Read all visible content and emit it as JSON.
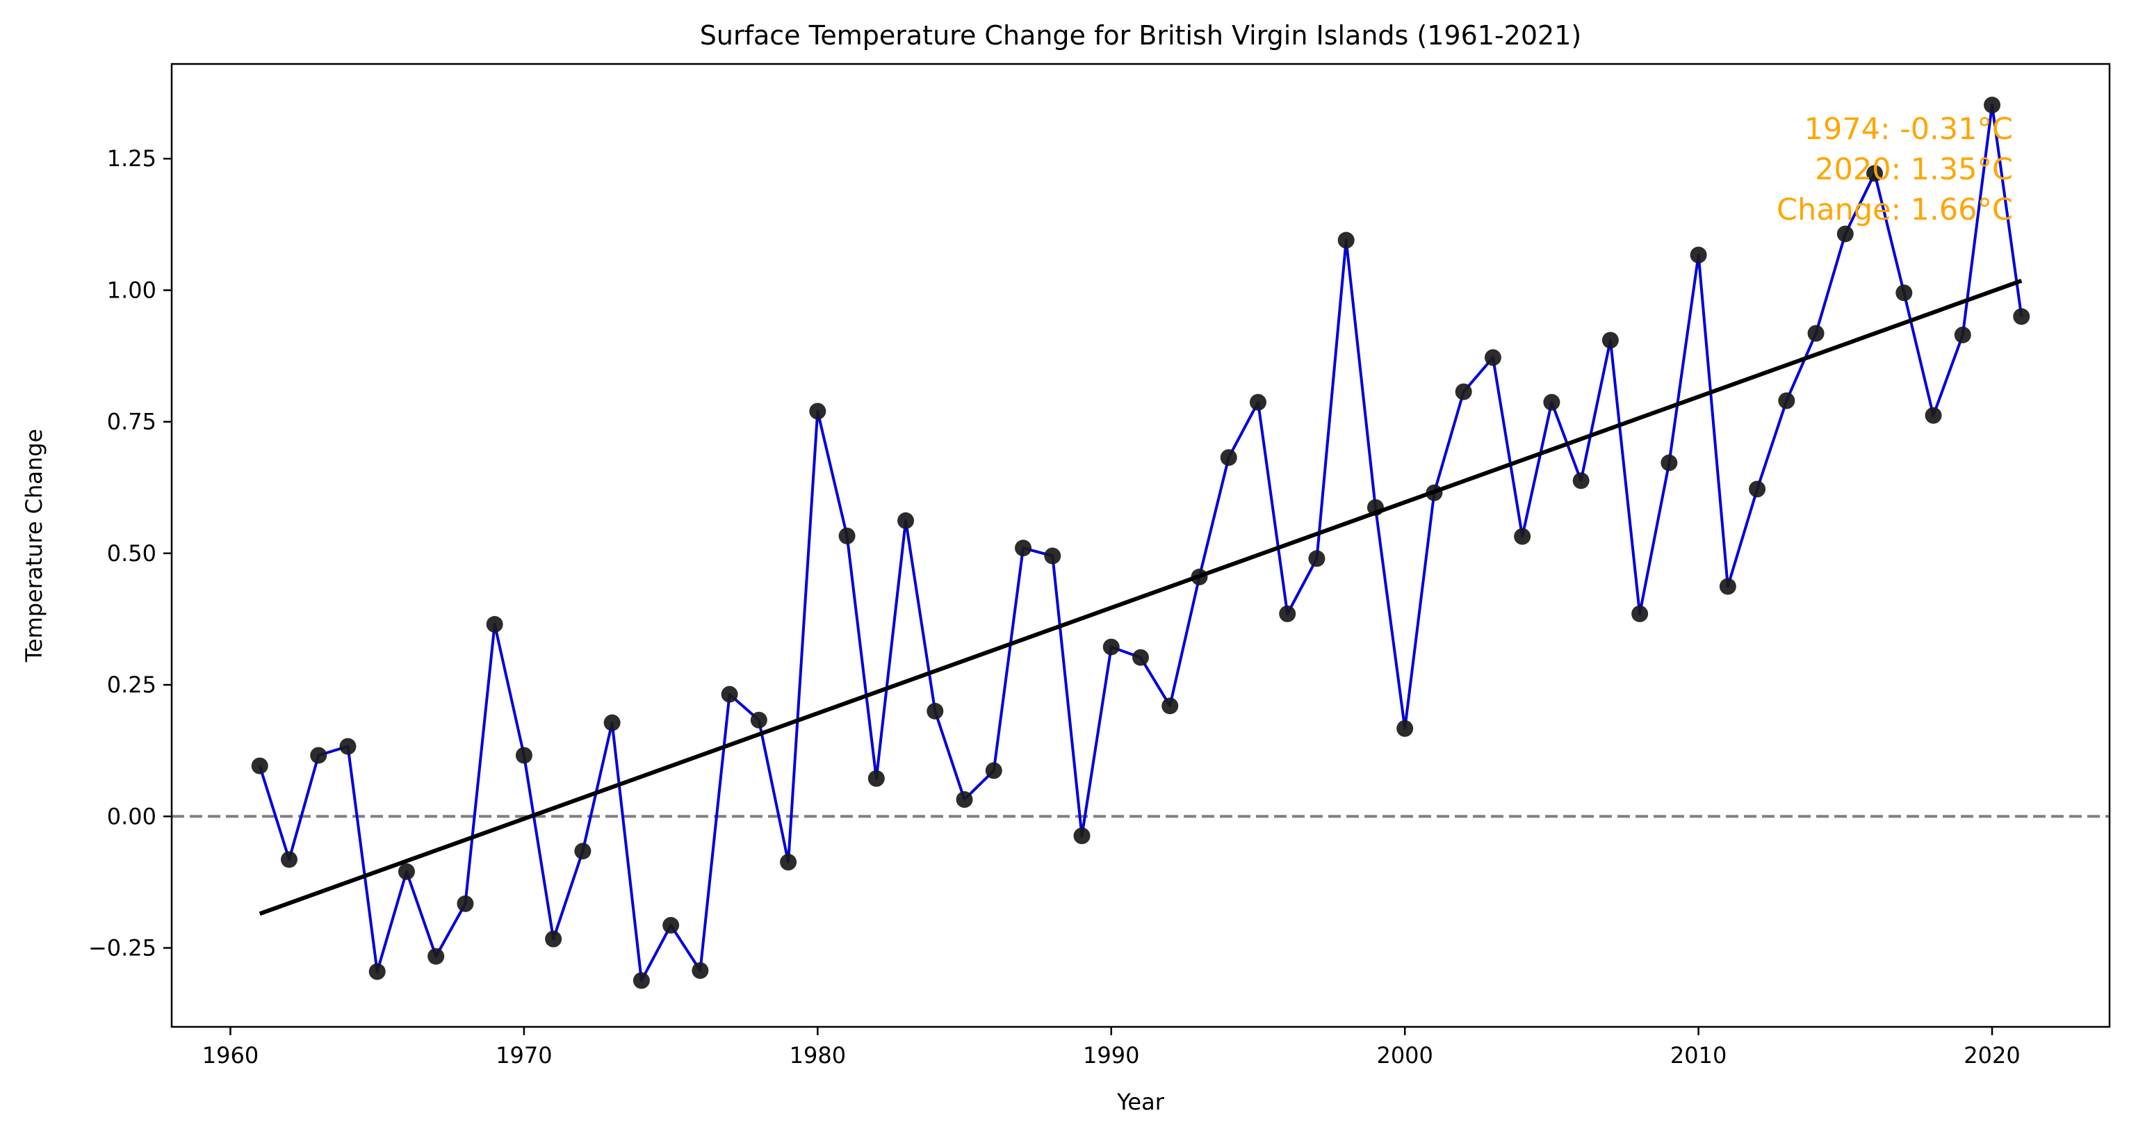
{
  "chart_data": {
    "type": "line",
    "title": "Surface Temperature Change for British Virgin Islands (1961-2021)",
    "xlabel": "Year",
    "ylabel": "Temperature Change",
    "xlim": [
      1958.0,
      2024.0
    ],
    "ylim": [
      -0.4,
      1.43
    ],
    "xticks": [
      1960,
      1970,
      1980,
      1990,
      2000,
      2010,
      2020
    ],
    "xtick_labels": [
      "1960",
      "1970",
      "1980",
      "1990",
      "2000",
      "2010",
      "2020"
    ],
    "yticks": [
      -0.25,
      0,
      0.25,
      0.5,
      0.75,
      1.0,
      1.25
    ],
    "ytick_labels": [
      "−0.25",
      "0.00",
      "0.25",
      "0.50",
      "0.75",
      "1.00",
      "1.25"
    ],
    "grid": false,
    "series": [
      {
        "x": [
          1961,
          1962,
          1963,
          1964,
          1965,
          1966,
          1967,
          1968,
          1969,
          1970,
          1971,
          1972,
          1973,
          1974,
          1975,
          1976,
          1977,
          1978,
          1979,
          1980,
          1981,
          1982,
          1983,
          1984,
          1985,
          1986,
          1987,
          1988,
          1989,
          1990,
          1991,
          1992,
          1993,
          1994,
          1995,
          1996,
          1997,
          1998,
          1999,
          2000,
          2001,
          2002,
          2003,
          2004,
          2005,
          2006,
          2007,
          2008,
          2009,
          2010,
          2011,
          2012,
          2013,
          2014,
          2015,
          2016,
          2017,
          2018,
          2019,
          2020,
          2021
        ],
        "values": [
          0.096,
          -0.082,
          0.116,
          0.133,
          -0.295,
          -0.105,
          -0.266,
          -0.166,
          0.365,
          0.116,
          -0.233,
          -0.066,
          0.178,
          -0.312,
          -0.207,
          -0.293,
          0.232,
          0.183,
          -0.087,
          0.77,
          0.533,
          0.072,
          0.562,
          0.2,
          0.032,
          0.087,
          0.51,
          0.495,
          -0.037,
          0.322,
          0.302,
          0.21,
          0.455,
          0.682,
          0.787,
          0.385,
          0.49,
          1.095,
          0.587,
          0.167,
          0.615,
          0.807,
          0.872,
          0.532,
          0.787,
          0.638,
          0.905,
          0.385,
          0.672,
          1.067,
          0.437,
          0.622,
          0.79,
          0.918,
          1.107,
          1.222,
          0.995,
          0.762,
          0.915,
          1.352,
          0.95
        ],
        "line_color": "#0000dd",
        "marker_color": "#1a1a1a"
      }
    ],
    "trend_line": {
      "x": [
        1961,
        2021
      ],
      "y": [
        -0.185,
        1.018
      ],
      "color": "#000000"
    },
    "reference_line": {
      "y": 0,
      "style": "dashed",
      "color": "#808080"
    },
    "annotation": {
      "lines": [
        "1974: -0.31°C",
        "2020: 1.35°C",
        "Change: 1.66°C"
      ],
      "color": "#ffa500",
      "placement": "top-right"
    }
  }
}
